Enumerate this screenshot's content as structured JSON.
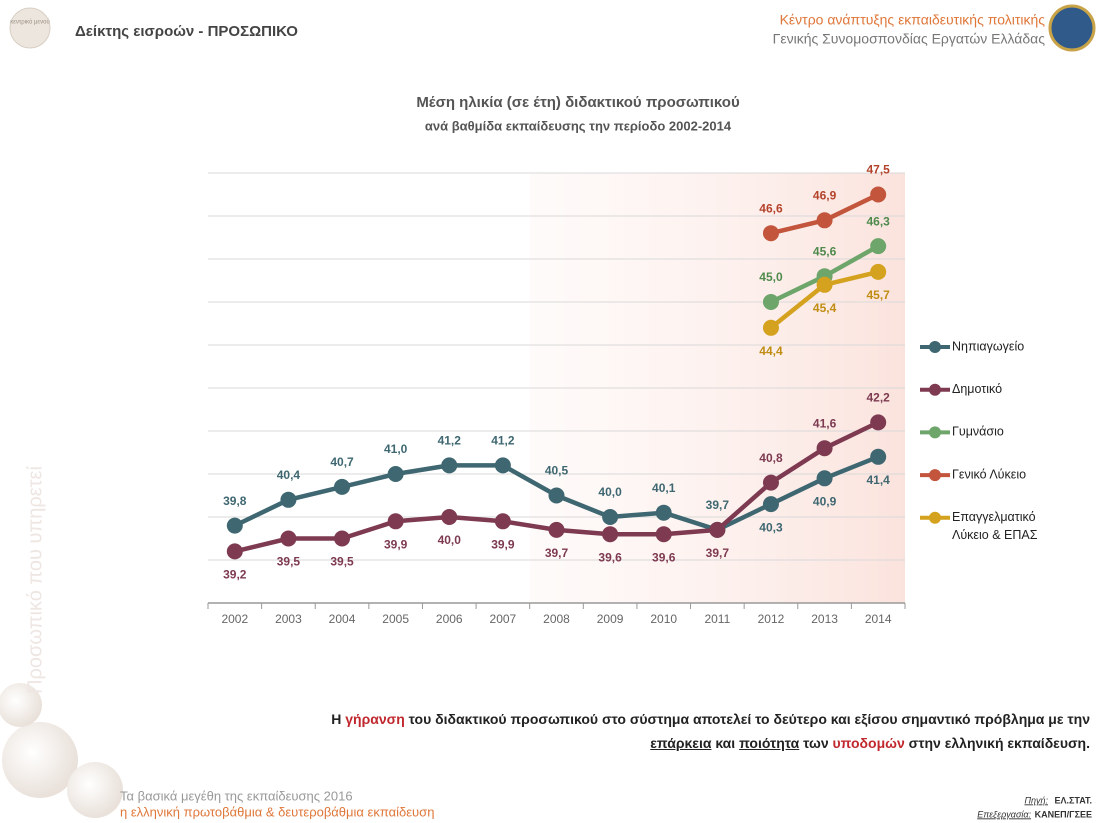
{
  "header": {
    "logo_text": "κεντρικό μενού",
    "title": "Δείκτης εισροών - ΠΡΟΣΩΠΙΚΟ",
    "org_line1": "Κέντρο ανάπτυξης εκπαιδευτικής πολιτικής",
    "org_line2": "Γενικής Συνομοσπονδίας Εργατών Ελλάδας"
  },
  "side_text": "Προσωπικό που υπηρετεί",
  "chart_data": {
    "type": "line",
    "title": "Μέση ηλικία (σε έτη) διδακτικού προσωπικού",
    "subtitle": "ανά βαθμίδα εκπαίδευσης την περίοδο 2002-2014",
    "categories": [
      "2002",
      "2003",
      "2004",
      "2005",
      "2006",
      "2007",
      "2008",
      "2009",
      "2010",
      "2011",
      "2012",
      "2013",
      "2014"
    ],
    "ylim": [
      38,
      48
    ],
    "ygrid": [
      39,
      40,
      41,
      42,
      43,
      44,
      45,
      46,
      47,
      48
    ],
    "grid": true,
    "legend": "right",
    "series": [
      {
        "name": "Νηπιαγωγείο",
        "color": "#3e6771",
        "values": [
          39.8,
          40.4,
          40.7,
          41.0,
          41.2,
          41.2,
          40.5,
          40.0,
          40.1,
          39.7,
          40.3,
          40.9,
          41.4
        ],
        "value_labels": [
          "39,8",
          "40,4",
          "40,7",
          "41,0",
          "41,2",
          "41,2",
          "40,5",
          "40,0",
          "40,1",
          "39,7",
          "40,3",
          "40,9",
          "41,4"
        ]
      },
      {
        "name": "Δημοτικό",
        "color": "#7d3a51",
        "values": [
          39.2,
          39.5,
          39.5,
          39.9,
          40.0,
          39.9,
          39.7,
          39.6,
          39.6,
          39.7,
          40.8,
          41.6,
          42.2
        ],
        "value_labels": [
          "39,2",
          "39,5",
          "39,5",
          "39,9",
          "40,0",
          "39,9",
          "39,7",
          "39,6",
          "39,6",
          "39,7",
          "40,8",
          "41,6",
          "42,2"
        ]
      },
      {
        "name": "Γυμνάσιο",
        "color": "#6da56b",
        "values": [
          null,
          null,
          null,
          null,
          null,
          null,
          null,
          null,
          null,
          null,
          45.0,
          45.6,
          46.3
        ],
        "value_labels": [
          null,
          null,
          null,
          null,
          null,
          null,
          null,
          null,
          null,
          null,
          "45,0",
          "45,6",
          "46,3"
        ]
      },
      {
        "name": "Γενικό Λύκειο",
        "color": "#c2553c",
        "values": [
          null,
          null,
          null,
          null,
          null,
          null,
          null,
          null,
          null,
          null,
          46.6,
          46.9,
          47.5
        ],
        "value_labels": [
          null,
          null,
          null,
          null,
          null,
          null,
          null,
          null,
          null,
          null,
          "46,6",
          "46,9",
          "47,5"
        ]
      },
      {
        "name": "Επαγγελματικό Λύκειο & ΕΠΑΣ",
        "color": "#d4a21f",
        "values": [
          null,
          null,
          null,
          null,
          null,
          null,
          null,
          null,
          null,
          null,
          44.4,
          45.4,
          45.7
        ],
        "value_labels": [
          null,
          null,
          null,
          null,
          null,
          null,
          null,
          null,
          null,
          null,
          "44,4",
          "45,4",
          "45,7"
        ]
      }
    ]
  },
  "statement": [
    "Η ",
    "γήρανση",
    " του διδακτικού προσωπικού στο σύστημα αποτελεί το δεύτερο και εξίσου σημαντικό πρόβλημα με την",
    "επάρκεια",
    " και ",
    "ποιότητα",
    " των ",
    "υποδομών",
    " στην ελληνική εκπαίδευση."
  ],
  "footer": {
    "line1": "Τα βασικά μεγέθη της εκπαίδευσης 2016",
    "line2": "η ελληνική πρωτοβάθμια & δευτεροβάθμια εκπαίδευση",
    "source_label": "Πηγή:",
    "source": "ΕΛ.ΣΤΑΤ.",
    "processing_label": "Επεξεργασία:",
    "processing": "ΚΑΝΕΠ/ΓΣΕΕ"
  }
}
